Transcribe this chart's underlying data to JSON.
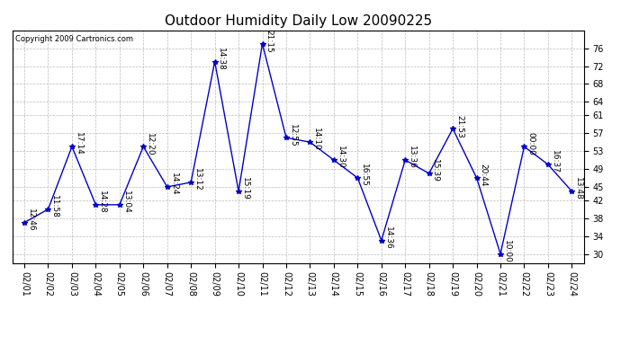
{
  "title": "Outdoor Humidity Daily Low 20090225",
  "copyright": "Copyright 2009 Cartronics.com",
  "x_labels": [
    "02/01",
    "02/02",
    "02/03",
    "02/04",
    "02/05",
    "02/06",
    "02/07",
    "02/08",
    "02/09",
    "02/10",
    "02/11",
    "02/12",
    "02/13",
    "02/14",
    "02/15",
    "02/16",
    "02/17",
    "02/18",
    "02/19",
    "02/20",
    "02/21",
    "02/22",
    "02/23",
    "02/24"
  ],
  "y_values": [
    37,
    40,
    54,
    41,
    41,
    54,
    45,
    46,
    73,
    44,
    77,
    56,
    55,
    51,
    47,
    33,
    51,
    48,
    58,
    47,
    30,
    54,
    50,
    44
  ],
  "time_labels": [
    "12:46",
    "11:58",
    "17:14",
    "14:28",
    "13:04",
    "12:20",
    "14:24",
    "13:12",
    "14:38",
    "15:19",
    "21:15",
    "12:55",
    "14:10",
    "14:30",
    "16:55",
    "14:36",
    "13:36",
    "15:39",
    "21:53",
    "20:44",
    "10:00",
    "00:00",
    "16:37",
    "13:48"
  ],
  "line_color": "#0000cc",
  "marker": "*",
  "marker_size": 4,
  "ylim": [
    28,
    80
  ],
  "yticks": [
    30,
    34,
    38,
    42,
    45,
    49,
    53,
    57,
    61,
    64,
    68,
    72,
    76
  ],
  "background_color": "#ffffff",
  "grid_color": "#bbbbbb",
  "title_fontsize": 11,
  "tick_fontsize": 7,
  "annotation_fontsize": 6.5,
  "copyright_fontsize": 6
}
